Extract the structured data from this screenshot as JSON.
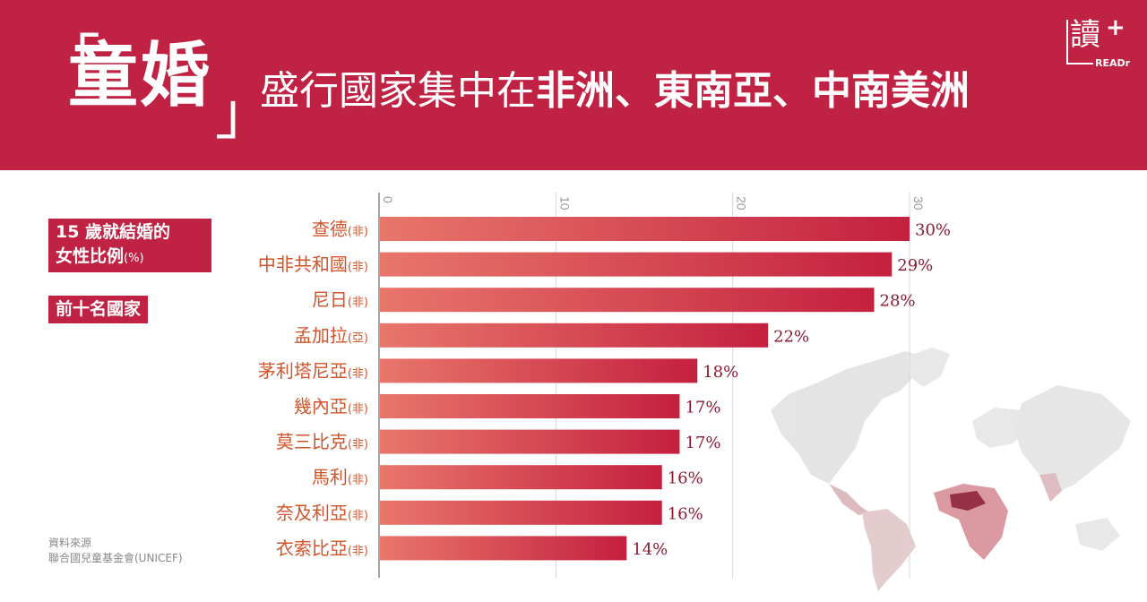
{
  "header": {
    "quote_open": "「",
    "quote_close": "」",
    "title_main": "童婚",
    "title_prefix": "盛行國家集中在",
    "title_regions": "非洲、東南亞、中南美洲"
  },
  "logo": {
    "char": "讀",
    "plus": "+",
    "text": "READr"
  },
  "side": {
    "metric_line1": "15 歲就結婚的",
    "metric_line2": "女性比例",
    "metric_unit": "(%)",
    "rank_label": "前十名國家"
  },
  "source": {
    "line1": "資料來源",
    "line2": "聯合國兒童基金會(UNICEF)"
  },
  "colors": {
    "brand": "#c02244",
    "bar_start": "#e8766b",
    "bar_end": "#c4203f",
    "label": "#d2542a",
    "value": "#8a1a33",
    "axis": "#999999"
  },
  "chart_data": {
    "type": "bar",
    "orientation": "horizontal",
    "categories": [
      "查德",
      "中非共和國",
      "尼日",
      "孟加拉",
      "茅利塔尼亞",
      "幾內亞",
      "莫三比克",
      "馬利",
      "奈及利亞",
      "衣索比亞"
    ],
    "regions": [
      "(非)",
      "(非)",
      "(非)",
      "(亞)",
      "(非)",
      "(非)",
      "(非)",
      "(非)",
      "(非)",
      "(非)"
    ],
    "values": [
      30,
      29,
      28,
      22,
      18,
      17,
      17,
      16,
      16,
      14
    ],
    "value_labels": [
      "30%",
      "29%",
      "28%",
      "22%",
      "18%",
      "17%",
      "17%",
      "16%",
      "16%",
      "14%"
    ],
    "ticks": [
      0,
      10,
      20,
      30
    ],
    "xlim": [
      0,
      30
    ],
    "grid": true
  }
}
